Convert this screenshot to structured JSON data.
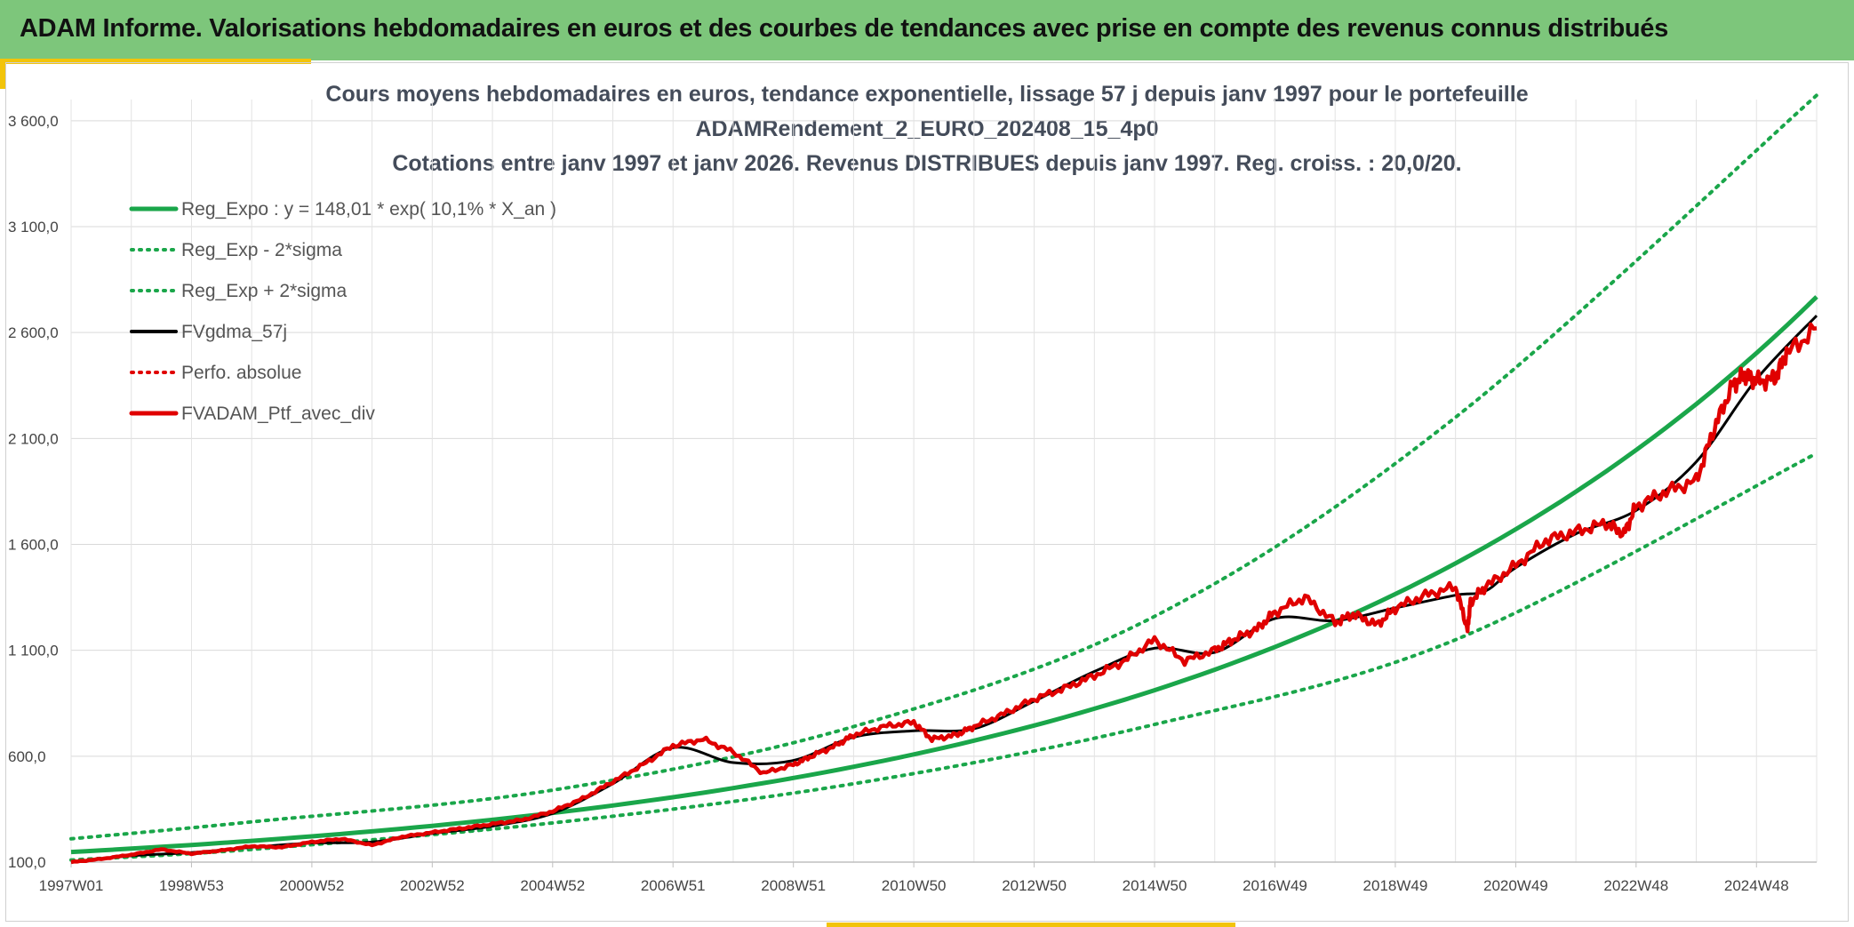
{
  "header": {
    "title": "ADAM Informe. Valorisations hebdomadaires en euros et des courbes de tendances avec prise en compte des revenus connus distribués"
  },
  "chart_data": {
    "type": "line",
    "title_lines": [
      "Cours moyens hebdomadaires en euros, tendance exponentielle, lissage 57 j depuis janv 1997 pour le portefeuille",
      "ADAMRendement_2_EURO_202408_15_4p0",
      "Cotations entre janv 1997 et janv 2026. Revenus DISTRIBUES depuis janv 1997. Reg. croiss. : 20,0/20."
    ],
    "xlabel": "",
    "ylabel": "",
    "x_tick_labels": [
      "1997W01",
      "1998W53",
      "2000W52",
      "2002W52",
      "2004W52",
      "2006W51",
      "2008W51",
      "2010W50",
      "2012W50",
      "2014W50",
      "2016W49",
      "2018W49",
      "2020W49",
      "2022W48",
      "2024W48"
    ],
    "x_range_years": [
      1997.0,
      2026.0
    ],
    "ylim": [
      100,
      3700
    ],
    "y_ticks": [
      100,
      600,
      1100,
      1600,
      2100,
      2600,
      3100,
      3600
    ],
    "y_tick_labels": [
      "100,0",
      "600,0",
      "1 100,0",
      "1 600,0",
      "2 100,0",
      "2 600,0",
      "3 100,0",
      "3 600,0"
    ],
    "grid": true,
    "legend_position": "top-left",
    "legend": [
      {
        "label": "Reg_Expo : y = 148,01 * exp( 10,1% *  X_an )",
        "color": "#1aa64a",
        "style": "solid-thick"
      },
      {
        "label": "Reg_Exp - 2*sigma",
        "color": "#1aa64a",
        "style": "dotted"
      },
      {
        "label": "Reg_Exp + 2*sigma",
        "color": "#1aa64a",
        "style": "dotted"
      },
      {
        "label": "FVgdma_57j",
        "color": "#000000",
        "style": "solid"
      },
      {
        "label": "Perfo. absolue",
        "color": "#e00000",
        "style": "dotted"
      },
      {
        "label": "FVADAM_Ptf_avec_div",
        "color": "#e00000",
        "style": "solid-thick"
      }
    ],
    "regression": {
      "a": 148.01,
      "rate": 0.101,
      "label": "Reg_Expo"
    },
    "sigma_bands": {
      "lower_points": {
        "x": [
          1997,
          2000,
          2005,
          2010,
          2015,
          2020,
          2026
        ],
        "y": [
          110,
          160,
          285,
          470,
          750,
          1150,
          2030
        ]
      },
      "upper_points": {
        "x": [
          1997,
          2000,
          2005,
          2010,
          2015,
          2020,
          2026
        ],
        "y": [
          210,
          290,
          440,
          740,
          1260,
          2200,
          3720
        ]
      }
    },
    "series": [
      {
        "name": "FVADAM_Ptf_avec_div",
        "color": "#e00000",
        "x": [
          1997.0,
          1997.5,
          1998.0,
          1998.5,
          1999.0,
          1999.5,
          2000.0,
          2000.5,
          2001.0,
          2001.5,
          2002.0,
          2002.5,
          2003.0,
          2003.5,
          2004.0,
          2004.5,
          2005.0,
          2005.5,
          2006.0,
          2006.5,
          2007.0,
          2007.5,
          2008.0,
          2008.5,
          2009.0,
          2009.3,
          2009.7,
          2010.0,
          2010.5,
          2011.0,
          2011.3,
          2011.7,
          2012.0,
          2012.5,
          2013.0,
          2013.5,
          2014.0,
          2014.5,
          2015.0,
          2015.5,
          2016.0,
          2016.3,
          2016.7,
          2017.0,
          2017.5,
          2018.0,
          2018.3,
          2018.7,
          2019.0,
          2019.5,
          2020.0,
          2020.2,
          2020.25,
          2020.5,
          2021.0,
          2021.5,
          2022.0,
          2022.5,
          2022.8,
          2023.0,
          2023.5,
          2024.0,
          2024.3,
          2024.6,
          2024.8,
          2025.0,
          2025.3,
          2025.5,
          2026.0
        ],
        "y": [
          100,
          115,
          135,
          160,
          140,
          155,
          175,
          170,
          195,
          210,
          180,
          220,
          240,
          260,
          280,
          300,
          340,
          400,
          480,
          560,
          650,
          680,
          620,
          520,
          560,
          600,
          650,
          700,
          740,
          760,
          680,
          700,
          740,
          800,
          870,
          920,
          980,
          1050,
          1150,
          1050,
          1100,
          1150,
          1200,
          1280,
          1350,
          1230,
          1270,
          1220,
          1300,
          1360,
          1400,
          1200,
          1330,
          1400,
          1500,
          1620,
          1660,
          1700,
          1650,
          1780,
          1850,
          1900,
          2150,
          2350,
          2400,
          2370,
          2380,
          2500,
          2620
        ]
      },
      {
        "name": "FVgdma_57j",
        "color": "#000000",
        "x": [
          1997.0,
          1998.0,
          1999.0,
          2000.0,
          2001.0,
          2002.0,
          2003.0,
          2004.0,
          2005.0,
          2006.0,
          2007.0,
          2008.0,
          2009.0,
          2010.0,
          2011.0,
          2012.0,
          2013.0,
          2014.0,
          2015.0,
          2016.0,
          2017.0,
          2018.0,
          2019.0,
          2020.0,
          2020.5,
          2021.0,
          2022.0,
          2023.0,
          2024.0,
          2025.0,
          2026.0
        ],
        "y": [
          100,
          130,
          145,
          170,
          190,
          195,
          235,
          270,
          330,
          470,
          640,
          570,
          580,
          690,
          720,
          730,
          860,
          1000,
          1110,
          1090,
          1250,
          1240,
          1300,
          1360,
          1380,
          1490,
          1650,
          1760,
          1990,
          2380,
          2680
        ]
      }
    ]
  }
}
